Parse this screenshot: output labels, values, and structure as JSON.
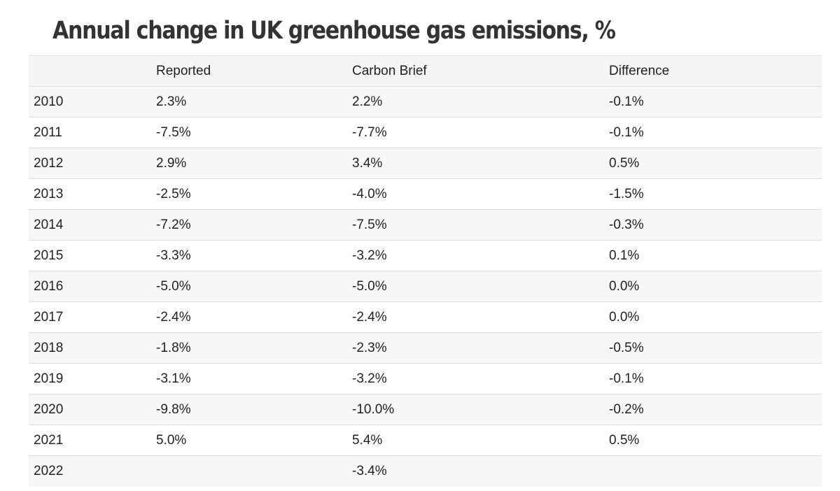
{
  "chart_data": {
    "type": "table",
    "title": "Annual change in UK greenhouse gas emissions, %",
    "columns": [
      "",
      "Reported",
      "Carbon Brief",
      "Difference"
    ],
    "rows": [
      [
        "2010",
        "2.3%",
        "2.2%",
        "-0.1%"
      ],
      [
        "2011",
        "-7.5%",
        "-7.7%",
        "-0.1%"
      ],
      [
        "2012",
        "2.9%",
        "3.4%",
        "0.5%"
      ],
      [
        "2013",
        "-2.5%",
        "-4.0%",
        "-1.5%"
      ],
      [
        "2014",
        "-7.2%",
        "-7.5%",
        "-0.3%"
      ],
      [
        "2015",
        "-3.3%",
        "-3.2%",
        "0.1%"
      ],
      [
        "2016",
        "-5.0%",
        "-5.0%",
        "0.0%"
      ],
      [
        "2017",
        "-2.4%",
        "-2.4%",
        "0.0%"
      ],
      [
        "2018",
        "-1.8%",
        "-2.3%",
        "-0.5%"
      ],
      [
        "2019",
        "-3.1%",
        "-3.2%",
        "-0.1%"
      ],
      [
        "2020",
        "-9.8%",
        "-10.0%",
        "-0.2%"
      ],
      [
        "2021",
        "5.0%",
        "5.4%",
        "0.5%"
      ],
      [
        "2022",
        "",
        "-3.4%",
        ""
      ]
    ]
  }
}
